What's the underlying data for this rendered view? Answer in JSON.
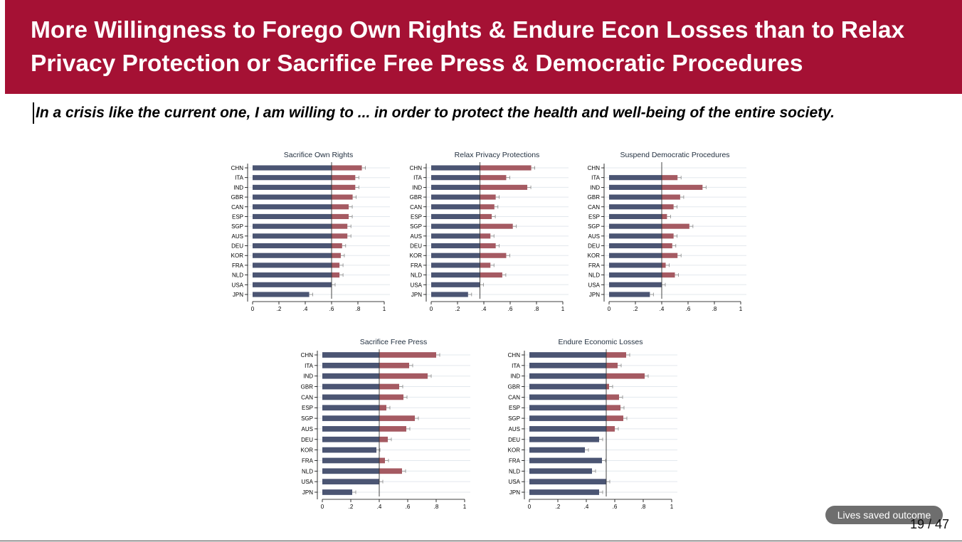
{
  "slide": {
    "title": "More Willingness to Forego Own Rights & Endure Econ Losses than to Relax Privacy Protection or Sacrifice Free Press & Democratic Procedures",
    "subtitle": "In a crisis like the current one, I am willing to ... in order to protect the health and well-being of the entire society.",
    "badge": "Lives saved outcome",
    "page": "19 / 47",
    "colors": {
      "header": "#a51134",
      "bar_base": "#4b5573",
      "bar_gain": "#a55a62"
    }
  },
  "chart_data": [
    {
      "type": "bar",
      "title": "Sacrifice Own Rights",
      "categories": [
        "CHN",
        "ITA",
        "IND",
        "GBR",
        "CAN",
        "ESP",
        "SGP",
        "AUS",
        "DEU",
        "KOR",
        "FRA",
        "NLD",
        "USA",
        "JPN"
      ],
      "values": [
        0.83,
        0.78,
        0.78,
        0.76,
        0.73,
        0.73,
        0.72,
        0.72,
        0.68,
        0.67,
        0.66,
        0.66,
        0.6,
        0.43
      ],
      "reference": 0.6,
      "xlim": [
        0,
        1
      ],
      "xticks": [
        "0",
        ".2",
        ".4",
        ".6",
        ".8",
        "1"
      ]
    },
    {
      "type": "bar",
      "title": "Relax Privacy Protections",
      "categories": [
        "CHN",
        "ITA",
        "IND",
        "GBR",
        "CAN",
        "ESP",
        "SGP",
        "AUS",
        "DEU",
        "KOR",
        "FRA",
        "NLD",
        "USA",
        "JPN"
      ],
      "values": [
        0.76,
        0.57,
        0.73,
        0.49,
        0.48,
        0.46,
        0.62,
        0.45,
        0.49,
        0.57,
        0.45,
        0.54,
        0.37,
        0.28
      ],
      "reference": 0.37,
      "xlim": [
        0,
        1
      ],
      "xticks": [
        "0",
        ".2",
        ".4",
        ".6",
        ".8",
        "1"
      ]
    },
    {
      "type": "bar",
      "title": "Suspend Democratic Procedures",
      "categories": [
        "CHN",
        "ITA",
        "IND",
        "GBR",
        "CAN",
        "ESP",
        "SGP",
        "AUS",
        "DEU",
        "KOR",
        "FRA",
        "NLD",
        "USA",
        "JPN"
      ],
      "values": [
        null,
        0.52,
        0.71,
        0.54,
        0.49,
        0.44,
        0.61,
        0.49,
        0.48,
        0.52,
        0.43,
        0.5,
        0.4,
        0.31
      ],
      "reference": 0.4,
      "xlim": [
        0,
        1
      ],
      "xticks": [
        "0",
        ".2",
        ".4",
        ".6",
        ".8",
        "1"
      ]
    },
    {
      "type": "bar",
      "title": "Sacrifice Free Press",
      "categories": [
        "CHN",
        "ITA",
        "IND",
        "GBR",
        "CAN",
        "ESP",
        "SGP",
        "AUS",
        "DEU",
        "KOR",
        "FRA",
        "NLD",
        "USA",
        "JPN"
      ],
      "values": [
        0.8,
        0.61,
        0.74,
        0.54,
        0.57,
        0.45,
        0.65,
        0.59,
        0.46,
        0.38,
        0.44,
        0.56,
        0.4,
        0.21
      ],
      "reference": 0.4,
      "xlim": [
        0,
        1
      ],
      "xticks": [
        "0",
        ".2",
        ".4",
        ".6",
        ".8",
        "1"
      ]
    },
    {
      "type": "bar",
      "title": "Endure Economic Losses",
      "categories": [
        "CHN",
        "ITA",
        "IND",
        "GBR",
        "CAN",
        "ESP",
        "SGP",
        "AUS",
        "DEU",
        "KOR",
        "FRA",
        "NLD",
        "USA",
        "JPN"
      ],
      "values": [
        0.68,
        0.62,
        0.81,
        0.56,
        0.63,
        0.64,
        0.66,
        0.6,
        0.49,
        0.39,
        0.51,
        0.44,
        0.54,
        0.49
      ],
      "reference": 0.54,
      "xlim": [
        0,
        1
      ],
      "xticks": [
        "0",
        ".2",
        ".4",
        ".6",
        ".8",
        "1"
      ]
    }
  ]
}
